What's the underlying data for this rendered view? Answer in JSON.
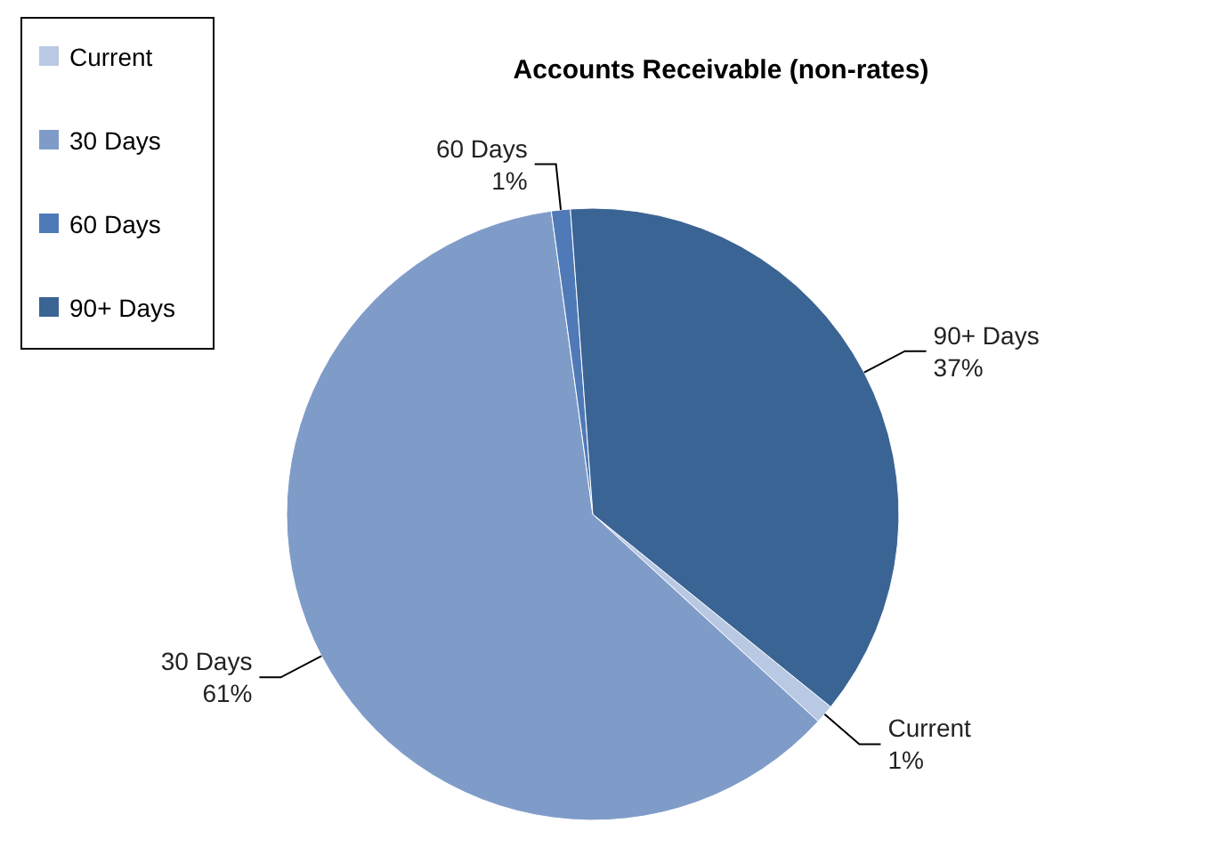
{
  "chart_data": {
    "type": "pie",
    "title": "Accounts Receivable (non-rates)",
    "categories": [
      "Current",
      "30 Days",
      "60 Days",
      "90+ Days"
    ],
    "values": [
      1,
      61,
      1,
      37
    ],
    "value_labels": [
      "1%",
      "61%",
      "1%",
      "37%"
    ],
    "colors": [
      "#b9c9e3",
      "#7f9cc9",
      "#4f7ab7",
      "#3a6493"
    ],
    "legend": "top left"
  }
}
